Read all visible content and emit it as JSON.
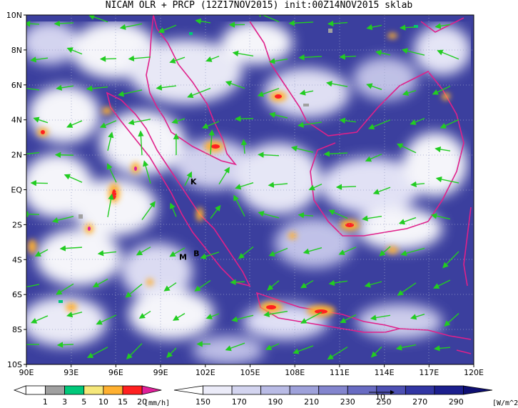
{
  "title": "NICAM OLR + PRCP (12Z17NOV2015) init:00Z14NOV2015 sklab",
  "axes": {
    "lat_labels": [
      "10N",
      "8N",
      "6N",
      "4N",
      "2N",
      "EQ",
      "2S",
      "4S",
      "6S",
      "8S",
      "10S"
    ],
    "lon_labels": [
      "90E",
      "93E",
      "96E",
      "99E",
      "102E",
      "105E",
      "108E",
      "111E",
      "114E",
      "117E",
      "120E"
    ]
  },
  "markers": [
    {
      "label": "K",
      "lon": 101.2,
      "lat": 0.3
    },
    {
      "label": "M",
      "lon": 100.5,
      "lat": -4.0
    },
    {
      "label": "B",
      "lon": 101.4,
      "lat": -3.8
    }
  ],
  "prcp_legend": {
    "unit": "[mm/h]",
    "labels": [
      "1",
      "3",
      "5",
      "10",
      "15",
      "20"
    ],
    "colors": [
      "#ffffff",
      "#a0a0a0",
      "#00c87a",
      "#f5e77a",
      "#ffb030",
      "#ff2020",
      "#e0209a"
    ]
  },
  "olr_legend": {
    "unit": "[W/m^2]",
    "labels": [
      "150",
      "170",
      "190",
      "210",
      "230",
      "250",
      "270",
      "290"
    ],
    "colors": [
      "#ffffff",
      "#ebebf8",
      "#d3d4ef",
      "#b9bbe5",
      "#9ea1da",
      "#8385ce",
      "#686bc2",
      "#4d50b3",
      "#3236a3",
      "#1c1f8e",
      "#0e0f72"
    ],
    "vector_ref": "10"
  },
  "colors": {
    "coast": "#e0208a",
    "wind": "#22cc22",
    "ocean_base": "#2e3292"
  }
}
